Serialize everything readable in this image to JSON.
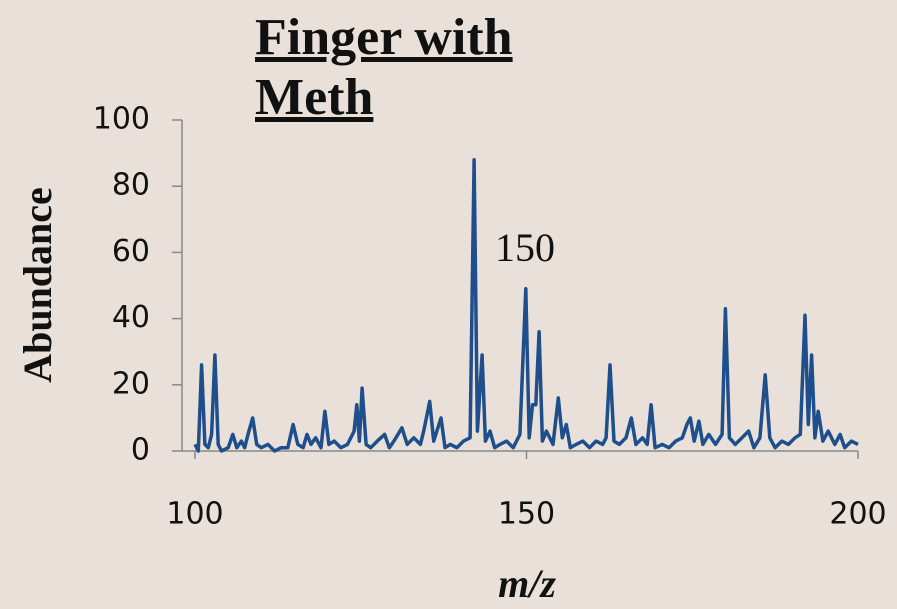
{
  "chart_data": {
    "type": "line",
    "title": "Finger with Meth",
    "annotation": "150",
    "xlabel": "m/z",
    "ylabel": "Abundance",
    "color": "#1f4e8c",
    "xlim": [
      100,
      200
    ],
    "xticks": [
      100,
      150,
      200
    ],
    "ylim": [
      0,
      100
    ],
    "yticks": [
      0,
      20,
      40,
      60,
      80,
      100
    ],
    "x": [
      100,
      100.5,
      101,
      101.5,
      102,
      102.5,
      103,
      103.5,
      104,
      105,
      105.7,
      106.3,
      107,
      107.5,
      108,
      108.7,
      109.3,
      110,
      111,
      112,
      113,
      114,
      114.8,
      115.5,
      116.3,
      116.9,
      117.5,
      118.2,
      119,
      119.6,
      120.2,
      121,
      122,
      123,
      124,
      124.4,
      124.8,
      125.2,
      125.8,
      126.5,
      127.5,
      128.6,
      129.3,
      130,
      131.2,
      132,
      133,
      134,
      134.5,
      135.4,
      136,
      137.1,
      137.7,
      138.5,
      139.5,
      140.5,
      141.5,
      142.1,
      142.6,
      143.3,
      143.8,
      144.5,
      145.2,
      146,
      147,
      148,
      149,
      149.9,
      150.4,
      150.9,
      151.4,
      151.9,
      152.4,
      153,
      154,
      154.8,
      155.4,
      156,
      156.6,
      157.5,
      158.5,
      159.5,
      160.5,
      161.5,
      162,
      162.6,
      163.2,
      164,
      165,
      165.8,
      166.5,
      167.5,
      168.2,
      168.8,
      169.4,
      170.5,
      171.5,
      172.5,
      173.5,
      174.2,
      174.7,
      175.3,
      176,
      176.6,
      177.5,
      178.5,
      179.5,
      180,
      180.6,
      181.5,
      182.5,
      183.5,
      184.3,
      185.2,
      186,
      186.7,
      187.5,
      188.5,
      189.5,
      190.5,
      191.3,
      192,
      192.5,
      193,
      193.5,
      194,
      194.7,
      195.5,
      196.5,
      197.3,
      198,
      199,
      200
    ],
    "values": [
      2,
      0,
      26,
      2,
      1,
      5,
      29,
      2,
      0,
      1,
      5,
      1,
      3,
      1,
      5,
      10,
      2,
      1,
      2,
      0,
      1,
      1,
      8,
      2,
      1,
      5,
      2,
      4,
      1,
      12,
      2,
      3,
      1,
      2,
      6,
      14,
      3,
      19,
      2,
      1,
      3,
      5,
      1,
      3,
      7,
      2,
      4,
      2,
      6,
      15,
      3,
      10,
      1,
      2,
      1,
      3,
      4,
      88,
      6,
      29,
      3,
      6,
      1,
      2,
      3,
      1,
      5,
      49,
      4,
      14,
      14,
      36,
      3,
      6,
      2,
      16,
      4,
      8,
      1,
      2,
      3,
      1,
      3,
      2,
      4,
      26,
      3,
      2,
      4,
      10,
      2,
      4,
      2,
      14,
      1,
      2,
      1,
      3,
      4,
      8,
      10,
      3,
      9,
      2,
      5,
      2,
      5,
      43,
      4,
      2,
      4,
      6,
      1,
      4,
      23,
      4,
      1,
      3,
      2,
      4,
      5,
      41,
      8,
      29,
      4,
      12,
      3,
      6,
      2,
      5,
      1,
      3,
      2
    ]
  }
}
